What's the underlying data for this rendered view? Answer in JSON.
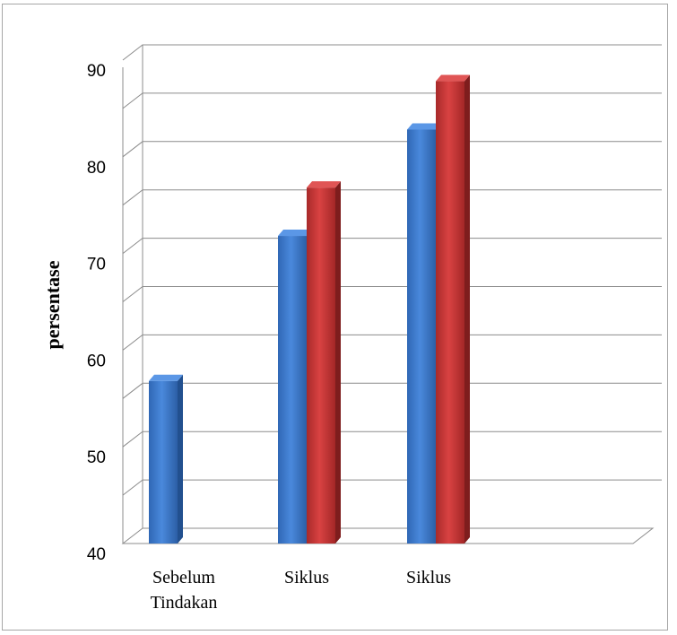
{
  "chart_data": {
    "type": "bar",
    "categories": [
      [
        "Sebelum",
        "Tindakan"
      ],
      [
        "Siklus"
      ],
      [
        "Siklus"
      ]
    ],
    "series": [
      {
        "values": [
          57,
          72,
          83
        ],
        "color": "#3d7bd1"
      },
      {
        "values": [
          null,
          77,
          88
        ],
        "color": "#c93636"
      }
    ],
    "ylabel": "persentase",
    "xlabel": "",
    "ylim": [
      40,
      90
    ],
    "yticks": [
      40,
      50,
      60,
      70,
      80,
      90
    ],
    "grid": true,
    "legend": "none"
  }
}
